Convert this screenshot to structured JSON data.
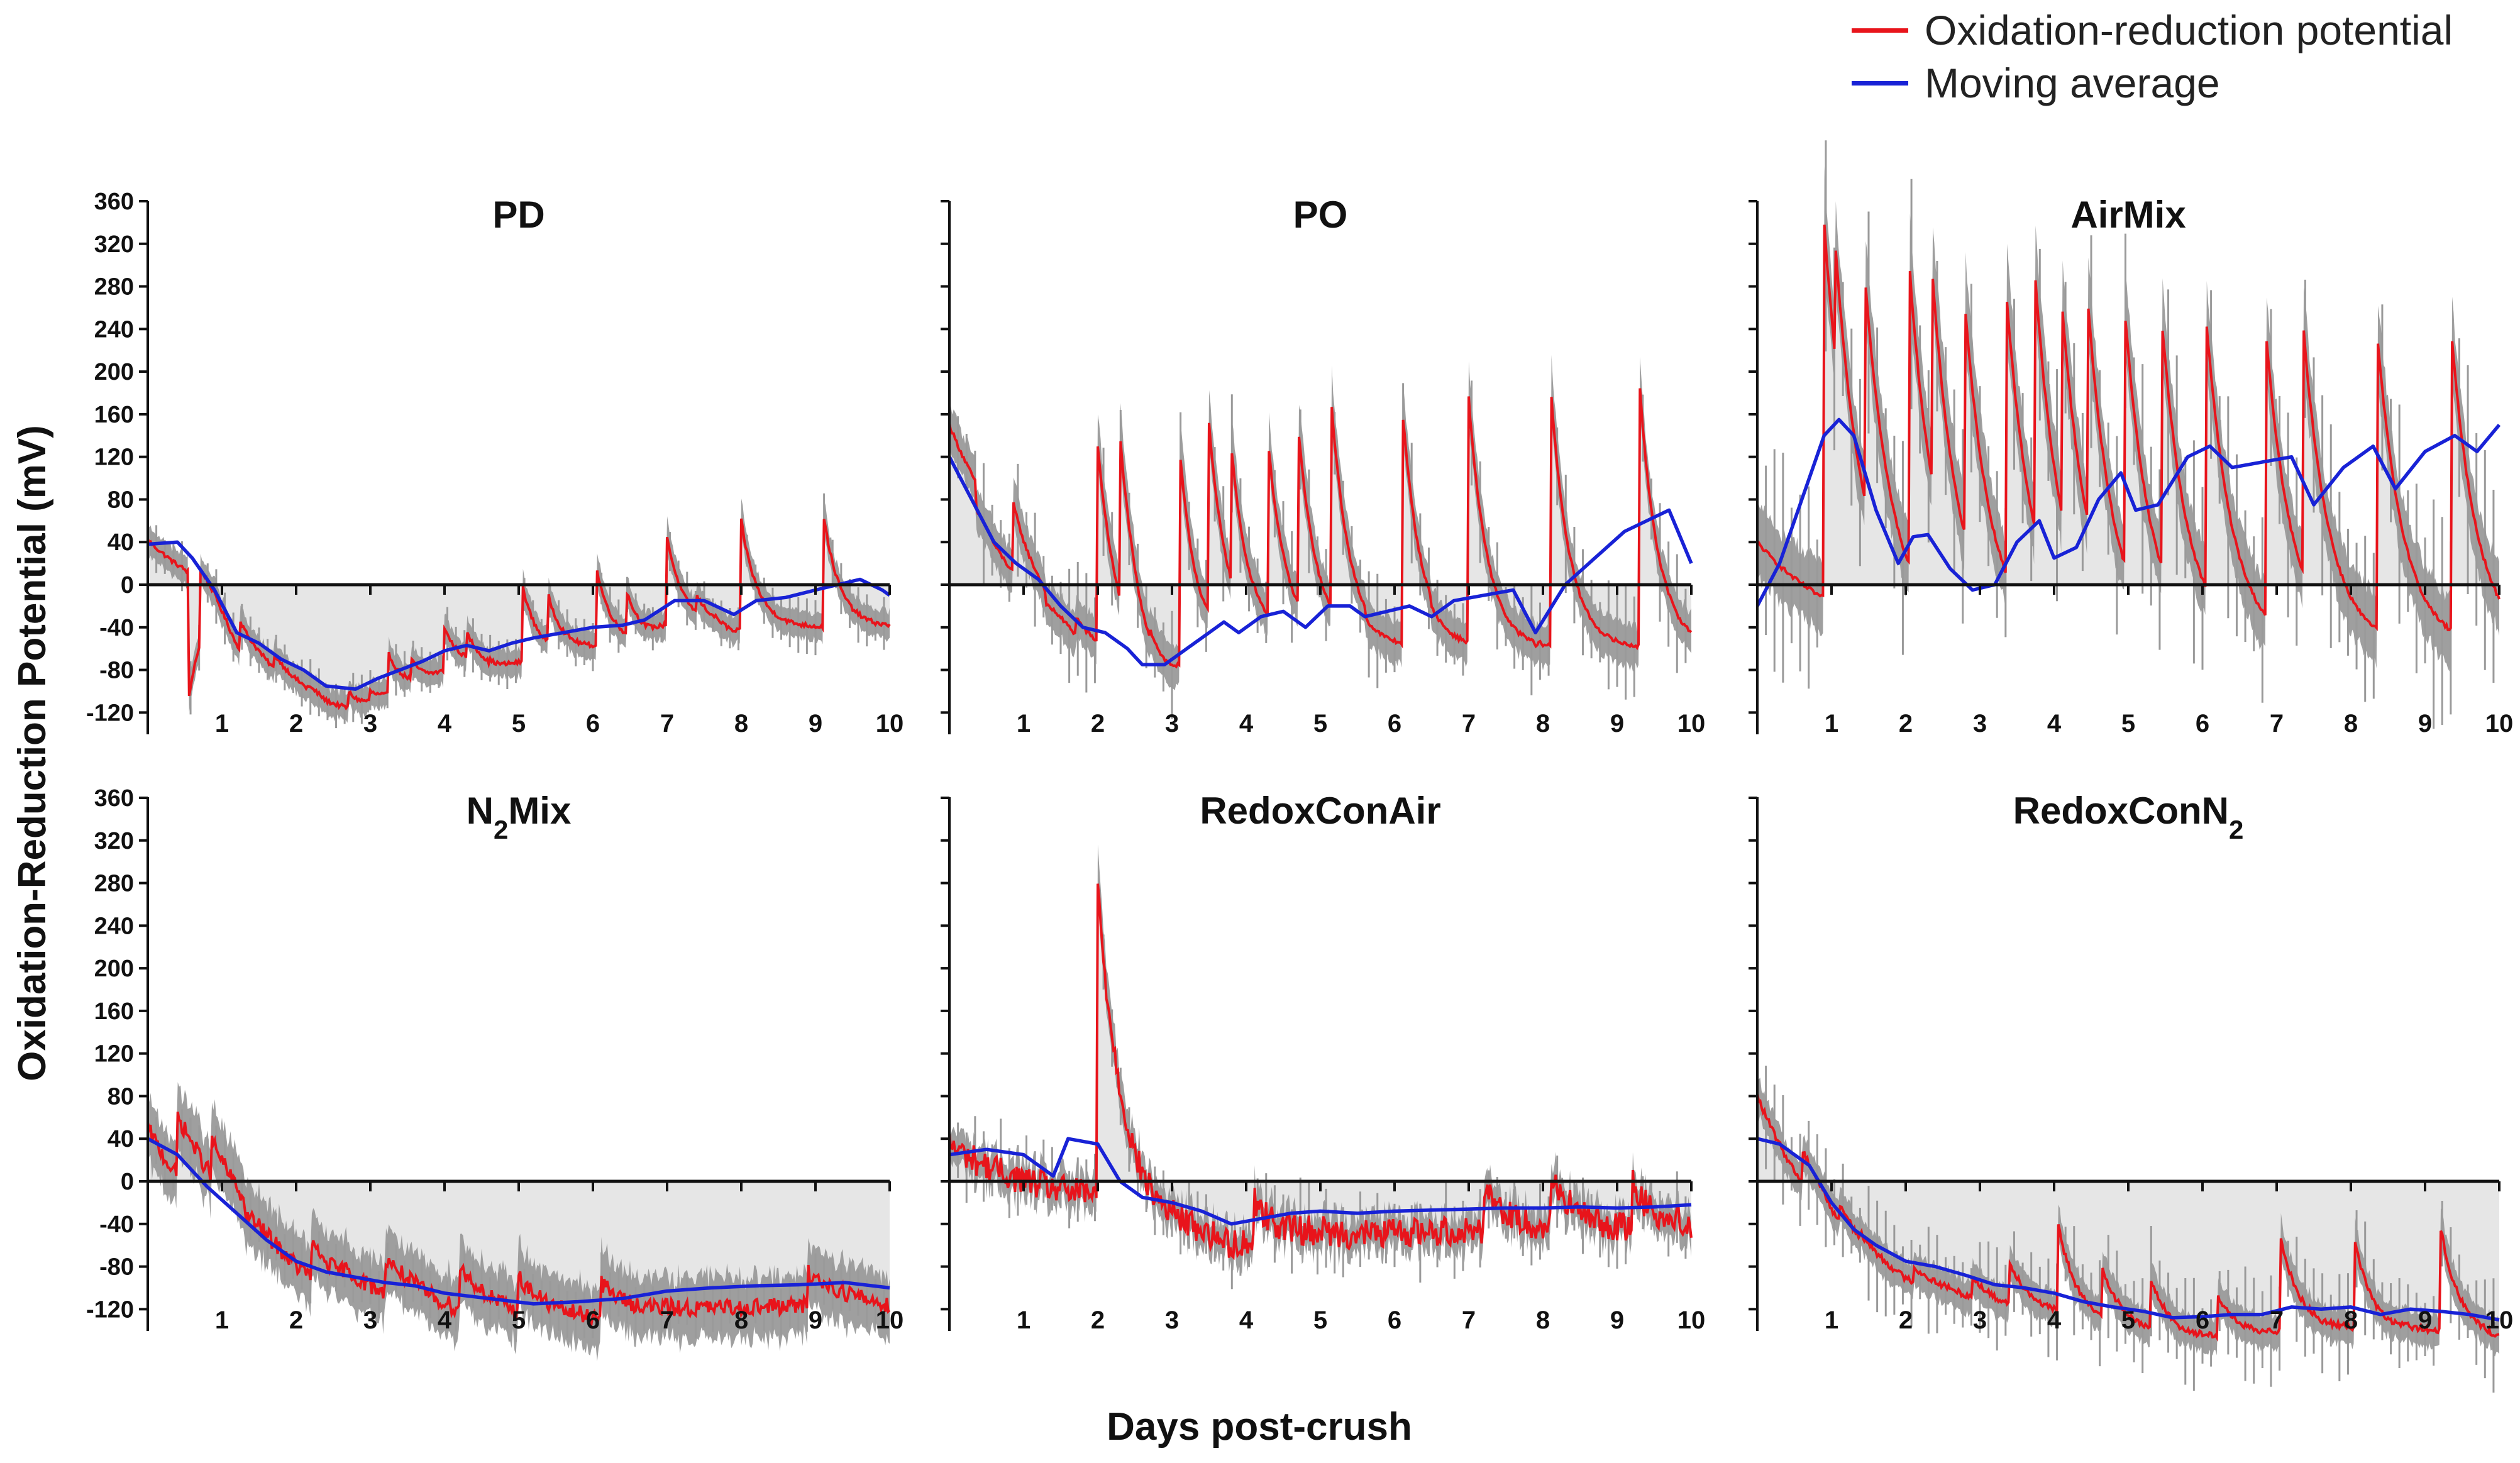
{
  "chart_data": {
    "type": "line",
    "ylabel": "Oxidation-Reduction Potential (mV)",
    "xlabel": "Days post-crush",
    "legend": [
      {
        "name": "Oxidation-reduction potential",
        "color": "#e8141b"
      },
      {
        "name": "Moving average",
        "color": "#1822d6"
      }
    ],
    "xlim": [
      0,
      10
    ],
    "ylim": [
      -140,
      360
    ],
    "x_ticks": [
      "1",
      "2",
      "3",
      "4",
      "5",
      "6",
      "7",
      "8",
      "9",
      "10"
    ],
    "y_ticks": [
      "360",
      "320",
      "280",
      "240",
      "200",
      "160",
      "120",
      "80",
      "40",
      "0",
      "-40",
      "-80",
      "-120"
    ],
    "colors": {
      "band": "#9a9a9a",
      "shade": "#e6e6e6",
      "orp": "#e8141b",
      "avg": "#1822d6",
      "axis": "#111111"
    },
    "panels": [
      {
        "title": "PD",
        "title_sub": "",
        "base": 42,
        "rest": -40,
        "noise": 2,
        "band": 10,
        "decay": 0.22,
        "spread": 12,
        "spikes": [
          [
            0.55,
            -110
          ],
          [
            0.7,
            15
          ],
          [
            1.25,
            -35
          ],
          [
            1.7,
            -65
          ],
          [
            2.15,
            -95
          ],
          [
            2.7,
            -100
          ],
          [
            3.0,
            -100
          ],
          [
            3.25,
            -65
          ],
          [
            3.55,
            -70
          ],
          [
            4.0,
            -40
          ],
          [
            4.3,
            -45
          ],
          [
            4.6,
            -70
          ],
          [
            5.05,
            0
          ],
          [
            5.4,
            -10
          ],
          [
            6.05,
            15
          ],
          [
            6.45,
            -5
          ],
          [
            7.0,
            45
          ],
          [
            7.4,
            -10
          ],
          [
            8.0,
            60
          ],
          [
            9.1,
            70
          ]
        ],
        "avg": [
          [
            0,
            38
          ],
          [
            0.4,
            40
          ],
          [
            0.6,
            25
          ],
          [
            0.9,
            -5
          ],
          [
            1.2,
            -45
          ],
          [
            1.5,
            -55
          ],
          [
            1.8,
            -70
          ],
          [
            2.1,
            -80
          ],
          [
            2.4,
            -95
          ],
          [
            2.8,
            -98
          ],
          [
            3.1,
            -88
          ],
          [
            3.4,
            -80
          ],
          [
            3.7,
            -72
          ],
          [
            4.0,
            -62
          ],
          [
            4.3,
            -57
          ],
          [
            4.6,
            -62
          ],
          [
            4.9,
            -55
          ],
          [
            5.2,
            -50
          ],
          [
            5.6,
            -45
          ],
          [
            6.0,
            -40
          ],
          [
            6.4,
            -38
          ],
          [
            6.7,
            -33
          ],
          [
            7.1,
            -15
          ],
          [
            7.5,
            -15
          ],
          [
            7.9,
            -28
          ],
          [
            8.2,
            -15
          ],
          [
            8.6,
            -12
          ],
          [
            9.0,
            -5
          ],
          [
            9.3,
            0
          ],
          [
            9.6,
            5
          ],
          [
            9.9,
            -5
          ],
          [
            10,
            -10
          ]
        ]
      },
      {
        "title": "PO",
        "title_sub": "",
        "base": 150,
        "rest": -60,
        "noise": 2,
        "band": 15,
        "decay": 0.25,
        "spread": 30,
        "spikes": [
          [
            0.35,
            70
          ],
          [
            0.85,
            80
          ],
          [
            1.3,
            -20
          ],
          [
            1.7,
            -30
          ],
          [
            2.0,
            130
          ],
          [
            2.3,
            140
          ],
          [
            2.7,
            -40
          ],
          [
            3.1,
            130
          ],
          [
            3.5,
            150
          ],
          [
            3.8,
            130
          ],
          [
            4.3,
            130
          ],
          [
            4.7,
            150
          ],
          [
            5.15,
            170
          ],
          [
            5.6,
            -30
          ],
          [
            6.1,
            170
          ],
          [
            6.5,
            -20
          ],
          [
            7.0,
            175
          ],
          [
            7.5,
            -30
          ],
          [
            8.1,
            190
          ],
          [
            9.3,
            190
          ]
        ],
        "avg": [
          [
            0,
            120
          ],
          [
            0.3,
            80
          ],
          [
            0.6,
            40
          ],
          [
            0.9,
            20
          ],
          [
            1.2,
            5
          ],
          [
            1.5,
            -20
          ],
          [
            1.8,
            -40
          ],
          [
            2.1,
            -45
          ],
          [
            2.4,
            -60
          ],
          [
            2.6,
            -75
          ],
          [
            2.9,
            -75
          ],
          [
            3.2,
            -60
          ],
          [
            3.5,
            -45
          ],
          [
            3.7,
            -35
          ],
          [
            3.9,
            -45
          ],
          [
            4.2,
            -30
          ],
          [
            4.5,
            -25
          ],
          [
            4.8,
            -40
          ],
          [
            5.1,
            -20
          ],
          [
            5.4,
            -20
          ],
          [
            5.6,
            -30
          ],
          [
            5.9,
            -25
          ],
          [
            6.2,
            -20
          ],
          [
            6.5,
            -30
          ],
          [
            6.8,
            -15
          ],
          [
            7.2,
            -10
          ],
          [
            7.6,
            -5
          ],
          [
            7.9,
            -45
          ],
          [
            8.3,
            0
          ],
          [
            8.7,
            25
          ],
          [
            9.1,
            50
          ],
          [
            9.4,
            60
          ],
          [
            9.7,
            70
          ],
          [
            10,
            20
          ]
        ]
      },
      {
        "title": "AirMix",
        "title_sub": "",
        "base": 40,
        "rest": -60,
        "noise": 2,
        "band": 25,
        "decay": 0.35,
        "spread": 60,
        "spikes": [
          [
            0.9,
            340
          ],
          [
            1.05,
            320
          ],
          [
            1.45,
            290
          ],
          [
            2.05,
            300
          ],
          [
            2.35,
            300
          ],
          [
            2.8,
            260
          ],
          [
            3.35,
            280
          ],
          [
            3.75,
            285
          ],
          [
            4.1,
            270
          ],
          [
            4.45,
            270
          ],
          [
            4.95,
            260
          ],
          [
            5.45,
            250
          ],
          [
            6.05,
            250
          ],
          [
            6.85,
            240
          ],
          [
            7.35,
            250
          ],
          [
            8.35,
            240
          ],
          [
            9.35,
            240
          ]
        ],
        "avg": [
          [
            0,
            -20
          ],
          [
            0.3,
            20
          ],
          [
            0.6,
            80
          ],
          [
            0.9,
            140
          ],
          [
            1.1,
            155
          ],
          [
            1.3,
            140
          ],
          [
            1.6,
            70
          ],
          [
            1.9,
            20
          ],
          [
            2.1,
            45
          ],
          [
            2.3,
            47
          ],
          [
            2.6,
            15
          ],
          [
            2.9,
            -5
          ],
          [
            3.2,
            0
          ],
          [
            3.5,
            40
          ],
          [
            3.8,
            60
          ],
          [
            4.0,
            25
          ],
          [
            4.3,
            35
          ],
          [
            4.6,
            80
          ],
          [
            4.9,
            105
          ],
          [
            5.1,
            70
          ],
          [
            5.4,
            75
          ],
          [
            5.8,
            120
          ],
          [
            6.1,
            130
          ],
          [
            6.4,
            110
          ],
          [
            6.8,
            115
          ],
          [
            7.2,
            120
          ],
          [
            7.5,
            75
          ],
          [
            7.9,
            110
          ],
          [
            8.3,
            130
          ],
          [
            8.6,
            90
          ],
          [
            9.0,
            125
          ],
          [
            9.4,
            140
          ],
          [
            9.7,
            125
          ],
          [
            10,
            150
          ]
        ]
      },
      {
        "title": "N",
        "title_sub": "2",
        "title_after": "Mix",
        "base": 50,
        "rest": -110,
        "noise": 8,
        "band": 22,
        "decay": 0.5,
        "spread": 0,
        "spikes": [
          [
            0.4,
            60
          ],
          [
            0.85,
            40
          ],
          [
            1.3,
            -30
          ],
          [
            2.2,
            -60
          ],
          [
            2.6,
            -80
          ],
          [
            3.2,
            -70
          ],
          [
            4.2,
            -80
          ],
          [
            5.0,
            -90
          ],
          [
            6.1,
            -95
          ],
          [
            8.9,
            -85
          ]
        ],
        "avg": [
          [
            0,
            40
          ],
          [
            0.4,
            25
          ],
          [
            0.8,
            -5
          ],
          [
            1.2,
            -30
          ],
          [
            1.6,
            -55
          ],
          [
            2.0,
            -75
          ],
          [
            2.4,
            -85
          ],
          [
            2.8,
            -90
          ],
          [
            3.2,
            -95
          ],
          [
            3.6,
            -98
          ],
          [
            4.0,
            -105
          ],
          [
            4.6,
            -110
          ],
          [
            5.2,
            -115
          ],
          [
            5.8,
            -113
          ],
          [
            6.4,
            -110
          ],
          [
            7.0,
            -103
          ],
          [
            7.6,
            -100
          ],
          [
            8.2,
            -98
          ],
          [
            8.8,
            -97
          ],
          [
            9.4,
            -95
          ],
          [
            10,
            -100
          ]
        ]
      },
      {
        "title": "RedoxConAir",
        "title_sub": "",
        "base": 35,
        "rest": -25,
        "noise": 14,
        "band": 12,
        "decay": 0.3,
        "spread": 18,
        "spikes": [
          [
            2.0,
            275
          ],
          [
            4.1,
            -15
          ],
          [
            7.2,
            0
          ],
          [
            8.1,
            10
          ],
          [
            9.2,
            0
          ]
        ],
        "avg": [
          [
            0,
            25
          ],
          [
            0.5,
            30
          ],
          [
            1.0,
            25
          ],
          [
            1.4,
            5
          ],
          [
            1.6,
            40
          ],
          [
            2.0,
            35
          ],
          [
            2.3,
            0
          ],
          [
            2.6,
            -15
          ],
          [
            3.0,
            -20
          ],
          [
            3.4,
            -28
          ],
          [
            3.8,
            -40
          ],
          [
            4.2,
            -35
          ],
          [
            4.6,
            -30
          ],
          [
            5.0,
            -28
          ],
          [
            5.5,
            -30
          ],
          [
            6.0,
            -28
          ],
          [
            6.5,
            -27
          ],
          [
            7.0,
            -26
          ],
          [
            7.5,
            -25
          ],
          [
            8.0,
            -25
          ],
          [
            8.5,
            -24
          ],
          [
            9.0,
            -25
          ],
          [
            9.5,
            -24
          ],
          [
            10,
            -22
          ]
        ]
      },
      {
        "title": "RedoxConN",
        "title_sub": "2",
        "base": 80,
        "rest": -125,
        "noise": 3,
        "band": 12,
        "decay": 0.25,
        "spread": 30,
        "spikes": [
          [
            0.6,
            30
          ],
          [
            1.1,
            -20
          ],
          [
            1.4,
            -50
          ],
          [
            2.1,
            -80
          ],
          [
            2.9,
            -90
          ],
          [
            3.4,
            -75
          ],
          [
            4.05,
            -40
          ],
          [
            4.65,
            -80
          ],
          [
            5.3,
            -90
          ],
          [
            6.2,
            -105
          ],
          [
            7.05,
            -50
          ],
          [
            8.05,
            -55
          ],
          [
            9.2,
            -40
          ]
        ],
        "avg": [
          [
            0,
            40
          ],
          [
            0.3,
            35
          ],
          [
            0.7,
            15
          ],
          [
            1.0,
            -20
          ],
          [
            1.3,
            -45
          ],
          [
            1.6,
            -60
          ],
          [
            2.0,
            -75
          ],
          [
            2.4,
            -80
          ],
          [
            2.8,
            -88
          ],
          [
            3.2,
            -97
          ],
          [
            3.6,
            -100
          ],
          [
            4.0,
            -105
          ],
          [
            4.4,
            -113
          ],
          [
            4.8,
            -118
          ],
          [
            5.2,
            -122
          ],
          [
            5.6,
            -128
          ],
          [
            6.0,
            -127
          ],
          [
            6.4,
            -125
          ],
          [
            6.8,
            -125
          ],
          [
            7.2,
            -118
          ],
          [
            7.6,
            -120
          ],
          [
            8.0,
            -118
          ],
          [
            8.4,
            -125
          ],
          [
            8.8,
            -120
          ],
          [
            9.2,
            -122
          ],
          [
            9.6,
            -125
          ],
          [
            10,
            -130
          ]
        ]
      }
    ]
  }
}
